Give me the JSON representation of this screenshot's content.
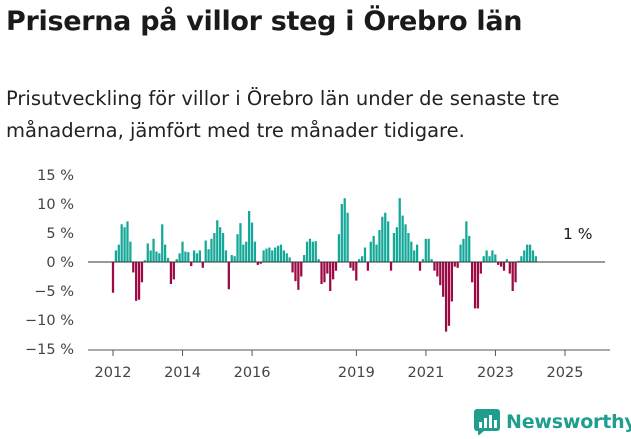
{
  "title": "Priserna på villor steg i Örebro län",
  "subtitle": "Prisutveckling för villor i Örebro län under de senaste tre månaderna, jämfört med tre månader tidigare.",
  "brand": "Newsworthy",
  "colors": {
    "positive": "#14a898",
    "negative": "#9b0a45",
    "zero_line": "#333333",
    "tick_text": "#444444"
  },
  "chart_data": {
    "type": "bar",
    "ylim": [
      -15,
      15
    ],
    "yticks": [
      {
        "value": 15,
        "label": "15 %"
      },
      {
        "value": 10,
        "label": "10 %"
      },
      {
        "value": 5,
        "label": "5 %"
      },
      {
        "value": 0,
        "label": "0 %"
      },
      {
        "value": -5,
        "label": "−5 %"
      },
      {
        "value": -10,
        "label": "−10 %"
      },
      {
        "value": -15,
        "label": "−15 %"
      }
    ],
    "xticks": [
      {
        "value": 2012.0,
        "label": "2012"
      },
      {
        "value": 2014.0,
        "label": "2014"
      },
      {
        "value": 2016.0,
        "label": "2016"
      },
      {
        "value": 2019.0,
        "label": "2019"
      },
      {
        "value": 2021.0,
        "label": "2021"
      },
      {
        "value": 2023.0,
        "label": "2023"
      },
      {
        "value": 2025.0,
        "label": "2025"
      }
    ],
    "xlim": [
      2011.5,
      2026.3
    ],
    "start": 2012.0,
    "step": 0.0833,
    "values": [
      -5.3,
      2,
      3,
      6.5,
      6,
      7,
      3.5,
      -1.8,
      -6.7,
      -6.5,
      -3.5,
      0.3,
      3.2,
      2,
      4,
      1.8,
      1.5,
      6.5,
      3,
      0.7,
      -3.8,
      -3,
      0.5,
      1.5,
      3.5,
      1.8,
      1.7,
      -0.7,
      2,
      1.5,
      2,
      -1,
      3.7,
      2.2,
      4,
      5,
      7.2,
      6,
      5,
      2,
      -4.7,
      1.2,
      1,
      4.8,
      6.7,
      3,
      3.5,
      8.8,
      6.8,
      3.5,
      -0.5,
      -0.3,
      2,
      2.3,
      2.5,
      2,
      2.5,
      2.8,
      3,
      2,
      1.5,
      0.8,
      -1.8,
      -3.3,
      -4.8,
      -2.5,
      1.2,
      3.5,
      4,
      3.5,
      3.6,
      0.5,
      -3.8,
      -3.5,
      -2,
      -5,
      -3,
      -1.5,
      4.8,
      10,
      11,
      8.5,
      -1,
      -1.5,
      -3.2,
      0.5,
      1,
      2.5,
      -1.5,
      3.5,
      4.5,
      3,
      5.5,
      7.8,
      8.5,
      7,
      -1.5,
      5,
      6,
      11,
      8,
      6.5,
      5,
      3.5,
      2,
      3,
      -1.5,
      0.5,
      4,
      4,
      0.5,
      -1.5,
      -2.5,
      -4,
      -6,
      -12,
      -11,
      -6.8,
      -0.8,
      -1,
      3,
      4,
      7,
      4.5,
      -3.5,
      -8,
      -8,
      -2,
      1,
      2,
      1,
      2,
      1.3,
      -0.5,
      -0.8,
      -1.5,
      0.5,
      -2,
      -5,
      -3.5,
      0.2,
      1,
      2,
      3,
      3,
      2,
      1
    ],
    "annotation": {
      "label": "1 %",
      "index": 157
    }
  }
}
